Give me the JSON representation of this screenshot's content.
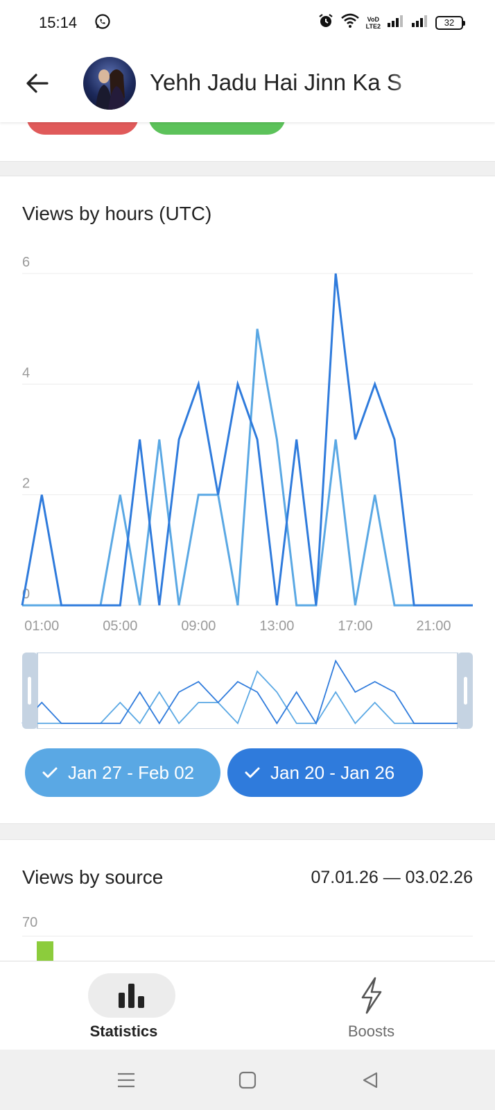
{
  "status_bar": {
    "time": "15:14",
    "battery": "32",
    "network_label_top": "VoD",
    "network_label_bottom": "LTE2",
    "icons": [
      "whatsapp-icon",
      "alarm-icon",
      "wifi-icon",
      "signal-icon",
      "signal-icon",
      "battery-icon"
    ]
  },
  "header": {
    "title": "Yehh Jadu Hai Jinn Ka S",
    "back_icon": "arrow-left-icon",
    "avatar": "channel-avatar"
  },
  "colors": {
    "series_this_week": "#5aa8e4",
    "series_last_week": "#2f7bdc",
    "pill_red": "#e05a5a",
    "pill_green": "#5cc25a",
    "source_bar": "#8ccc3c"
  },
  "views_by_hours": {
    "title": "Views by hours (UTC)",
    "chips": [
      {
        "label": "Jan 27 - Feb 02",
        "checked": true,
        "color": "#5aa8e4"
      },
      {
        "label": "Jan 20 - Jan 26",
        "checked": true,
        "color": "#2f7bdc"
      }
    ]
  },
  "chart_data": {
    "type": "line",
    "title": "Views by hours (UTC)",
    "x": [
      0,
      1,
      2,
      3,
      4,
      5,
      6,
      7,
      8,
      9,
      10,
      11,
      12,
      13,
      14,
      15,
      16,
      17,
      18,
      19,
      20,
      21,
      22,
      23
    ],
    "x_tick_labels": [
      "01:00",
      "05:00",
      "09:00",
      "13:00",
      "17:00",
      "21:00"
    ],
    "x_tick_positions": [
      1,
      5,
      9,
      13,
      17,
      21
    ],
    "ylim": [
      0,
      6
    ],
    "y_ticks": [
      0,
      2,
      4,
      6
    ],
    "grid": true,
    "legend": "bottom",
    "series": [
      {
        "name": "Jan 27 - Feb 02",
        "color": "#5aa8e4",
        "values": [
          0,
          0,
          0,
          0,
          0,
          2,
          0,
          3,
          0,
          2,
          2,
          0,
          5,
          3,
          0,
          0,
          3,
          0,
          2,
          0,
          0,
          0,
          0,
          0
        ]
      },
      {
        "name": "Jan 20 - Jan 26",
        "color": "#2f7bdc",
        "values": [
          0,
          2,
          0,
          0,
          0,
          0,
          3,
          0,
          3,
          4,
          2,
          4,
          3,
          0,
          3,
          0,
          6,
          3,
          4,
          3,
          0,
          0,
          0,
          0
        ]
      }
    ]
  },
  "views_by_source": {
    "title": "Views by source",
    "date_range": "07.01.26 — 03.02.26",
    "y_tick": "70"
  },
  "bottom_nav": {
    "items": [
      {
        "label": "Statistics",
        "icon": "bar-chart-icon",
        "active": true
      },
      {
        "label": "Boosts",
        "icon": "lightning-icon",
        "active": false
      }
    ]
  },
  "system_nav": {
    "icons": [
      "menu-icon",
      "home-icon",
      "back-triangle-icon"
    ]
  }
}
